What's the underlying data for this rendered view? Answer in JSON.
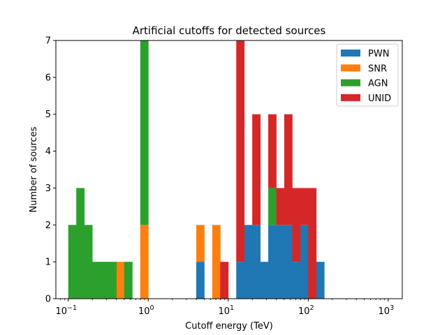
{
  "chart_data": {
    "type": "bar",
    "stacking": "stacked",
    "title": "Artificial cutoffs for detected sources",
    "xlabel": "Cutoff energy (TeV)",
    "ylabel": "Number of sources",
    "xscale": "log",
    "xlim": [
      0.07,
      1500
    ],
    "ylim": [
      0,
      7
    ],
    "bins_per_decade": 10,
    "bin_range": [
      0.1,
      1000
    ],
    "xticks": [
      {
        "exp": "-1",
        "value": 0.1
      },
      {
        "exp": "0",
        "value": 1
      },
      {
        "exp": "1",
        "value": 10
      },
      {
        "exp": "2",
        "value": 100
      },
      {
        "exp": "3",
        "value": 1000
      }
    ],
    "tick_base": "10",
    "yticks": [
      "0",
      "1",
      "2",
      "3",
      "4",
      "5",
      "6",
      "7"
    ],
    "legend_position": "top-right",
    "series": [
      {
        "name": "PWN",
        "color": "#1f77b4",
        "bins": [
          {
            "x": 3.98,
            "count": 1
          },
          {
            "x": 12.6,
            "count": 1
          },
          {
            "x": 15.8,
            "count": 2
          },
          {
            "x": 20.0,
            "count": 2
          },
          {
            "x": 25.1,
            "count": 1
          },
          {
            "x": 31.6,
            "count": 2
          },
          {
            "x": 39.8,
            "count": 2
          },
          {
            "x": 50.1,
            "count": 2
          },
          {
            "x": 63.1,
            "count": 1
          },
          {
            "x": 79.4,
            "count": 2
          },
          {
            "x": 126,
            "count": 1
          }
        ]
      },
      {
        "name": "SNR",
        "color": "#ff7f0e",
        "bins": [
          {
            "x": 0.398,
            "count": 1
          },
          {
            "x": 0.794,
            "count": 2
          },
          {
            "x": 3.98,
            "count": 1
          },
          {
            "x": 6.31,
            "count": 2
          }
        ]
      },
      {
        "name": "AGN",
        "color": "#2ca02c",
        "bins": [
          {
            "x": 0.1,
            "count": 2
          },
          {
            "x": 0.126,
            "count": 3
          },
          {
            "x": 0.158,
            "count": 2
          },
          {
            "x": 0.2,
            "count": 1
          },
          {
            "x": 0.251,
            "count": 1
          },
          {
            "x": 0.316,
            "count": 1
          },
          {
            "x": 0.501,
            "count": 1
          },
          {
            "x": 0.794,
            "count": 5
          },
          {
            "x": 31.6,
            "count": 1
          }
        ]
      },
      {
        "name": "UNID",
        "color": "#d62728",
        "bins": [
          {
            "x": 7.94,
            "count": 1
          },
          {
            "x": 12.6,
            "count": 6
          },
          {
            "x": 20.0,
            "count": 3
          },
          {
            "x": 31.6,
            "count": 2
          },
          {
            "x": 39.8,
            "count": 1
          },
          {
            "x": 50.1,
            "count": 3
          },
          {
            "x": 63.1,
            "count": 2
          },
          {
            "x": 79.4,
            "count": 1
          },
          {
            "x": 100,
            "count": 3
          }
        ]
      }
    ]
  }
}
